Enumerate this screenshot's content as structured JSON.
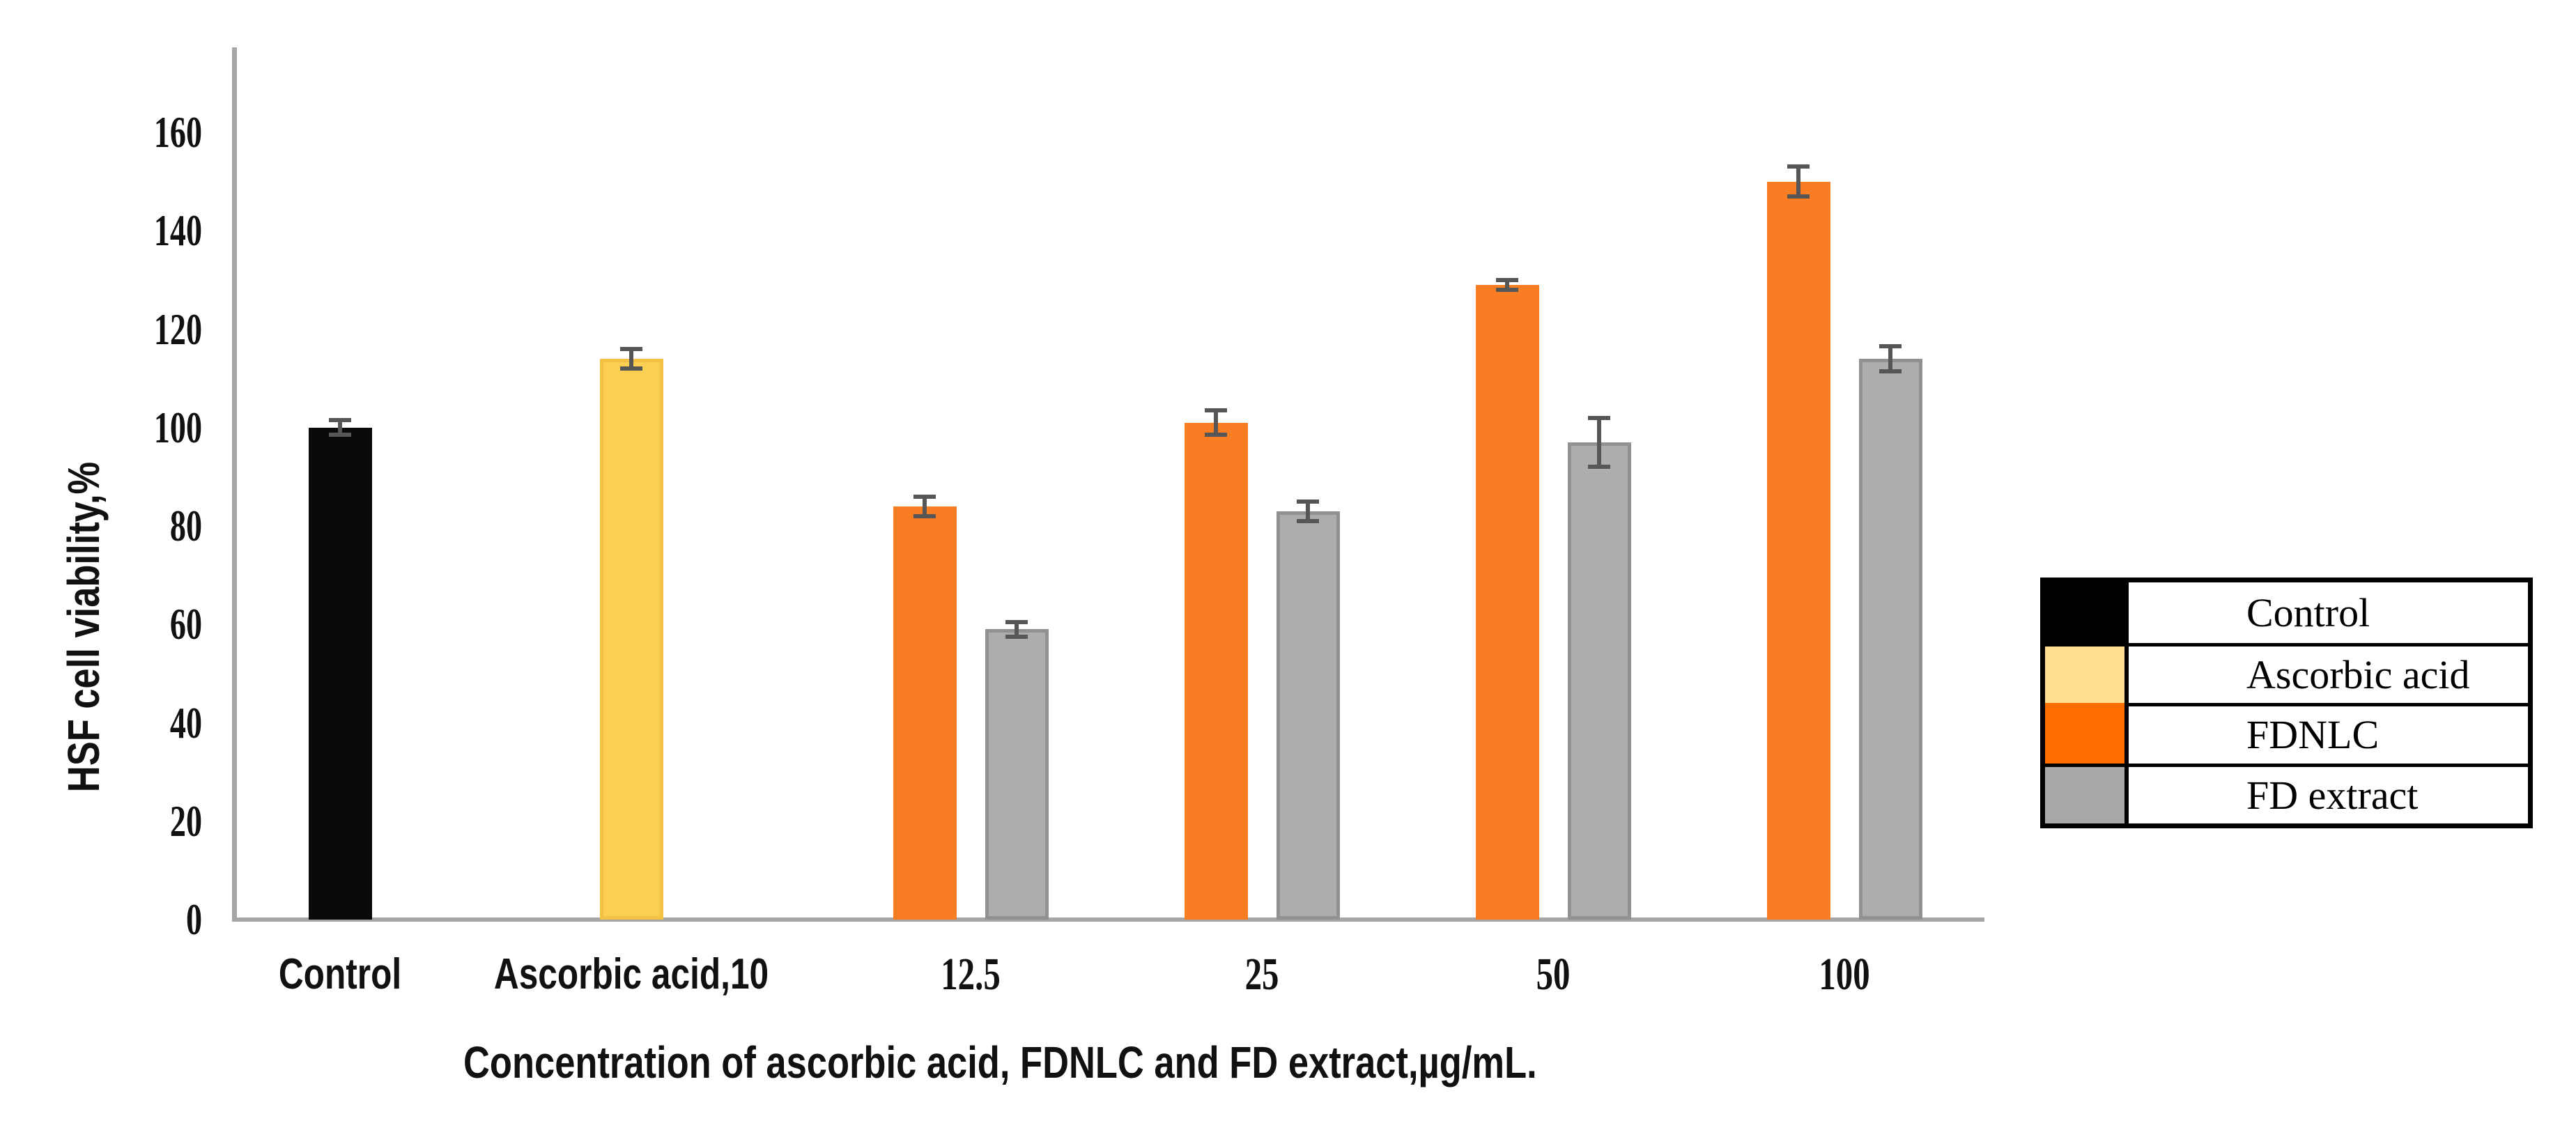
{
  "page": {
    "background": "#ffffff"
  },
  "chart_data": {
    "type": "bar",
    "title": "",
    "ylabel": "HSF cell viability,%",
    "xlabel": "Concentration of ascorbic acid, FDNLC and FD extract,µg/mL.",
    "ylim": [
      0,
      160
    ],
    "ytick_step": 20,
    "yticks": [
      0,
      20,
      40,
      60,
      80,
      100,
      120,
      140,
      160
    ],
    "grid": false,
    "legend_position": "right",
    "legend_style": "boxed-table",
    "axis_color": "#a6a6a6",
    "error_bar_color": "#565656",
    "categories": [
      "Control",
      "Ascorbic acid,10",
      "12.5",
      "25",
      "50",
      "100"
    ],
    "series": [
      {
        "name": "Control",
        "color": "#0a0a0a",
        "legend_color": "#000000",
        "values": [
          100,
          null,
          null,
          null,
          null,
          null
        ],
        "errors": [
          1.5,
          null,
          null,
          null,
          null,
          null
        ]
      },
      {
        "name": "Ascorbic acid",
        "color": "#fbcf52",
        "legend_color": "#fedf8e",
        "border_color": "#f3c143",
        "values": [
          null,
          114,
          null,
          null,
          null,
          null
        ],
        "errors": [
          null,
          2,
          null,
          null,
          null,
          null
        ]
      },
      {
        "name": "FDNLC",
        "color": "#f97d23",
        "legend_color": "#ff6c00",
        "values": [
          null,
          null,
          84,
          101,
          129,
          150
        ],
        "errors": [
          null,
          null,
          2,
          2.5,
          1,
          3
        ]
      },
      {
        "name": "FD extract",
        "color": "#adadad",
        "legend_color": "#a9a9a9",
        "border_color": "#919191",
        "values": [
          null,
          null,
          59,
          83,
          97,
          114
        ],
        "errors": [
          null,
          null,
          1.5,
          2,
          5,
          2.5
        ]
      }
    ]
  }
}
